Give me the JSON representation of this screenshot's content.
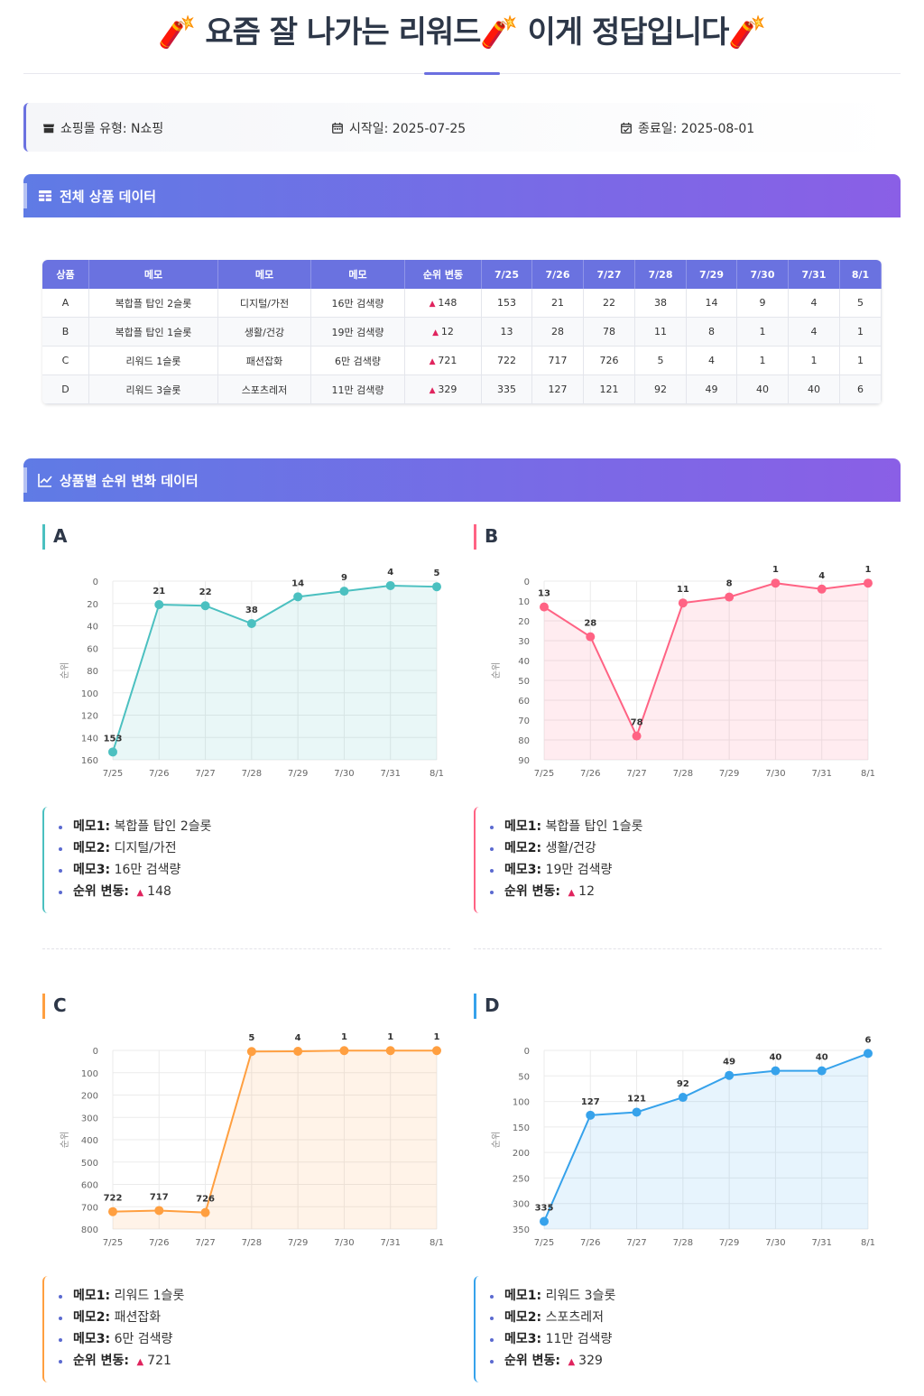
{
  "header": {
    "title": "🧨 요즘 잘 나가는 리워드🧨  이게 정답입니다🧨"
  },
  "info": {
    "mall_type": "쇼핑몰 유형: N쇼핑",
    "start_date": "시작일: 2025-07-25",
    "end_date": "종료일: 2025-08-01"
  },
  "sections": {
    "table_title": "전체 상품 데이터",
    "charts_title": "상품별 순위 변화 데이터"
  },
  "table": {
    "headers": [
      "상품",
      "메모",
      "메모",
      "메모",
      "순위 변동",
      "7/25",
      "7/26",
      "7/27",
      "7/28",
      "7/29",
      "7/30",
      "7/31",
      "8/1"
    ],
    "rows": [
      [
        "A",
        "복합플 탑인 2슬롯",
        "디지털/가전",
        "16만 검색량",
        "148",
        "153",
        "21",
        "22",
        "38",
        "14",
        "9",
        "4",
        "5"
      ],
      [
        "B",
        "복합플 탑인 1슬롯",
        "생활/건강",
        "19만 검색량",
        "12",
        "13",
        "28",
        "78",
        "11",
        "8",
        "1",
        "4",
        "1"
      ],
      [
        "C",
        "리워드 1슬롯",
        "패션잡화",
        "6만 검색량",
        "721",
        "722",
        "717",
        "726",
        "5",
        "4",
        "1",
        "1",
        "1"
      ],
      [
        "D",
        "리워드 3슬롯",
        "스포츠레저",
        "11만 검색량",
        "329",
        "335",
        "127",
        "121",
        "92",
        "49",
        "40",
        "40",
        "6"
      ]
    ]
  },
  "chart_data": [
    {
      "type": "line",
      "title": "A",
      "ylabel": "순위",
      "x": [
        "7/25",
        "7/26",
        "7/27",
        "7/28",
        "7/29",
        "7/30",
        "7/31",
        "8/1"
      ],
      "values": [
        153,
        21,
        22,
        38,
        14,
        9,
        4,
        5
      ],
      "yticks": [
        0,
        20,
        40,
        60,
        80,
        100,
        120,
        140,
        160
      ],
      "ylim": [
        0,
        160
      ],
      "reversed": true,
      "color": "#4bc0c0",
      "grid": true
    },
    {
      "type": "line",
      "title": "B",
      "ylabel": "순위",
      "x": [
        "7/25",
        "7/26",
        "7/27",
        "7/28",
        "7/29",
        "7/30",
        "7/31",
        "8/1"
      ],
      "values": [
        13,
        28,
        78,
        11,
        8,
        1,
        4,
        1
      ],
      "yticks": [
        0,
        10,
        20,
        30,
        40,
        50,
        60,
        70,
        80,
        90
      ],
      "ylim": [
        0,
        90
      ],
      "reversed": true,
      "color": "#ff6384",
      "grid": true
    },
    {
      "type": "line",
      "title": "C",
      "ylabel": "순위",
      "x": [
        "7/25",
        "7/26",
        "7/27",
        "7/28",
        "7/29",
        "7/30",
        "7/31",
        "8/1"
      ],
      "values": [
        722,
        717,
        726,
        5,
        4,
        1,
        1,
        1
      ],
      "yticks": [
        0,
        100,
        200,
        300,
        400,
        500,
        600,
        700,
        800
      ],
      "ylim": [
        0,
        800
      ],
      "reversed": true,
      "color": "#ff9f40",
      "grid": true
    },
    {
      "type": "line",
      "title": "D",
      "ylabel": "순위",
      "x": [
        "7/25",
        "7/26",
        "7/27",
        "7/28",
        "7/29",
        "7/30",
        "7/31",
        "8/1"
      ],
      "values": [
        335,
        127,
        121,
        92,
        49,
        40,
        40,
        6
      ],
      "yticks": [
        0,
        50,
        100,
        150,
        200,
        250,
        300,
        350
      ],
      "ylim": [
        0,
        350
      ],
      "reversed": true,
      "color": "#36a2eb",
      "grid": true
    }
  ],
  "memos": [
    {
      "m1_label": "메모1:",
      "m1": "복합플 탑인 2슬롯",
      "m2_label": "메모2:",
      "m2": "디지털/가전",
      "m3_label": "메모3:",
      "m3": "16만 검색량",
      "rank_label": "순위 변동:",
      "rank": "148"
    },
    {
      "m1_label": "메모1:",
      "m1": "복합플 탑인 1슬롯",
      "m2_label": "메모2:",
      "m2": "생활/건강",
      "m3_label": "메모3:",
      "m3": "19만 검색량",
      "rank_label": "순위 변동:",
      "rank": "12"
    },
    {
      "m1_label": "메모1:",
      "m1": "리워드 1슬롯",
      "m2_label": "메모2:",
      "m2": "패션잡화",
      "m3_label": "메모3:",
      "m3": "6만 검색량",
      "rank_label": "순위 변동:",
      "rank": "721"
    },
    {
      "m1_label": "메모1:",
      "m1": "리워드 3슬롯",
      "m2_label": "메모2:",
      "m2": "스포츠레저",
      "m3_label": "메모3:",
      "m3": "11만 검색량",
      "rank_label": "순위 변동:",
      "rank": "329"
    }
  ],
  "colors": {
    "accent": "#6b72e0",
    "rank_up": "#e0245e"
  }
}
